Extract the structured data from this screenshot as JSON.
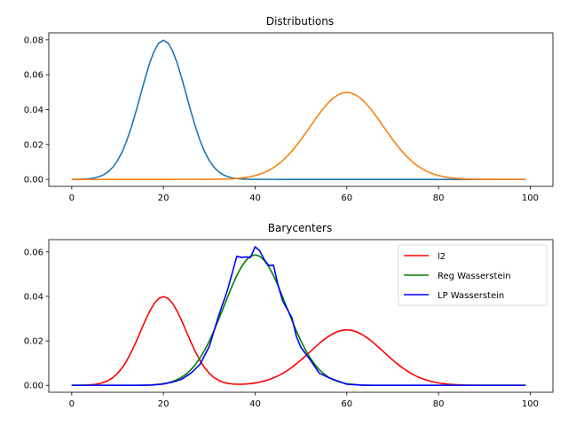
{
  "chart_data": [
    {
      "type": "line",
      "title": "Distributions",
      "xlabel": "",
      "ylabel": "",
      "xlim": [
        -5,
        104.95
      ],
      "ylim": [
        -0.004,
        0.084
      ],
      "xticks": [
        "0",
        "20",
        "40",
        "60",
        "80",
        "100"
      ],
      "yticks": [
        "0.00",
        "0.02",
        "0.04",
        "0.06",
        "0.08"
      ],
      "grid": false,
      "legend": "none",
      "series": [
        {
          "color": "#1f77b4",
          "distribution": "gaussian",
          "mean": 20,
          "std": 5,
          "x_range": [
            0,
            99
          ]
        },
        {
          "color": "#ff7f0e",
          "distribution": "gaussian",
          "mean": 60,
          "std": 8,
          "x_range": [
            0,
            99
          ]
        }
      ]
    },
    {
      "type": "line",
      "title": "Barycenters",
      "xlabel": "",
      "ylabel": "",
      "xlim": [
        -5,
        104.95
      ],
      "ylim": [
        -0.0031,
        0.0655
      ],
      "xticks": [
        "0",
        "20",
        "40",
        "60",
        "80",
        "100"
      ],
      "yticks": [
        "0.00",
        "0.02",
        "0.04",
        "0.06"
      ],
      "grid": false,
      "legend": "upper-right",
      "series": [
        {
          "name": "l2",
          "color": "#ff0000",
          "distribution": "mixture of two gaussians",
          "means": [
            20,
            60
          ],
          "stds": [
            5,
            8
          ],
          "weights": [
            0.5,
            0.5
          ],
          "x_range": [
            0,
            99
          ]
        },
        {
          "name": "Reg Wasserstein",
          "color": "#008000",
          "distribution": "gaussian",
          "mean": 40,
          "std": 6.8,
          "x_range": [
            0,
            99
          ]
        },
        {
          "name": "LP Wasserstein",
          "color": "#0000ff",
          "x": [
            0,
            4,
            8,
            12,
            16,
            18,
            20,
            22,
            24,
            26,
            28,
            30,
            32,
            34,
            36,
            37,
            38,
            39,
            40,
            41,
            42,
            43,
            44,
            45,
            46,
            48,
            49,
            50,
            52,
            54,
            56,
            58,
            60,
            64,
            68,
            72,
            76,
            80,
            84,
            88,
            92,
            96,
            99
          ],
          "y": [
            0,
            0,
            0,
            0,
            0,
            0.0002,
            0.0006,
            0.0015,
            0.0028,
            0.0055,
            0.0095,
            0.0175,
            0.031,
            0.043,
            0.058,
            0.0575,
            0.0577,
            0.0575,
            0.0623,
            0.0605,
            0.0565,
            0.0538,
            0.054,
            0.045,
            0.038,
            0.0305,
            0.022,
            0.017,
            0.0115,
            0.0055,
            0.0035,
            0.002,
            0.0005,
            0,
            0,
            0,
            0,
            0,
            0,
            0,
            0,
            0,
            0
          ]
        }
      ]
    }
  ]
}
